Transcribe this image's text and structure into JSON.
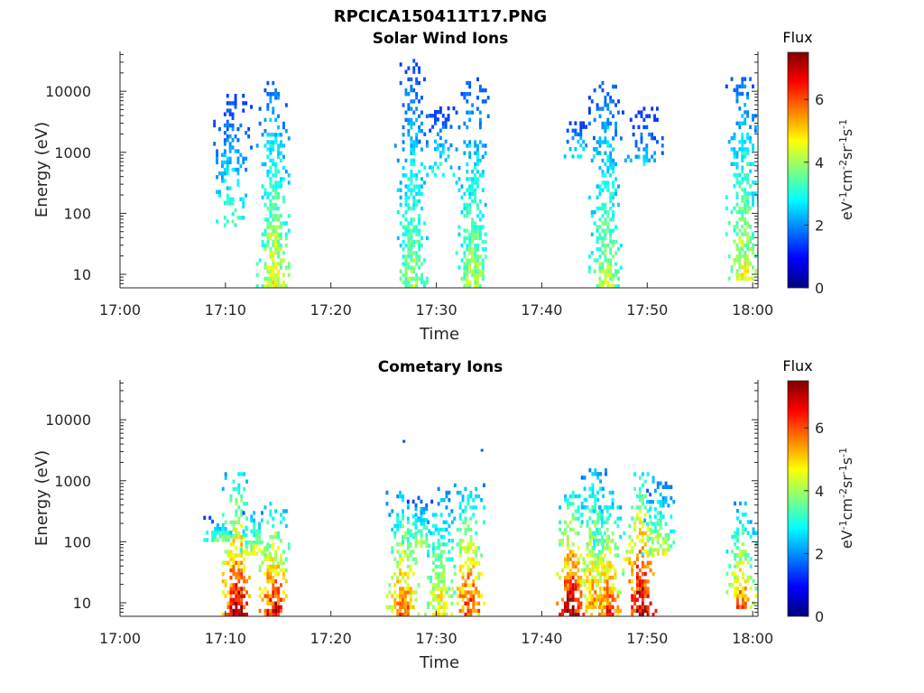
{
  "figure": {
    "title": "RPCICA150411T17.PNG"
  },
  "chart_data": [
    {
      "type": "heatmap",
      "title": "Solar Wind Ions",
      "xlabel": "Time",
      "ylabel": "Energy (eV)",
      "x_ticks": [
        "17:00",
        "17:10",
        "17:20",
        "17:30",
        "17:40",
        "17:50",
        "18:00"
      ],
      "x_range_minutes": [
        0,
        60.5
      ],
      "y_scale": "log",
      "y_ticks": [
        "10",
        "100",
        "1000",
        "10000"
      ],
      "y_range": [
        6,
        45000
      ],
      "colorbar": {
        "title": "Flux",
        "label": "eV-1cm-2sr-1s-1",
        "ticks": [
          "0",
          "2",
          "4",
          "6"
        ],
        "range": [
          0,
          7.5
        ],
        "colormap": "jet"
      },
      "bursts": [
        {
          "t": 10.5,
          "e_low": 60,
          "e_high": 9000,
          "flux_max": 3.4,
          "sparse": true
        },
        {
          "t": 14.5,
          "e_low": 6,
          "e_high": 14000,
          "flux_max": 4.6,
          "sparse": false
        },
        {
          "t": 27.6,
          "e_low": 6,
          "e_high": 30000,
          "flux_max": 4.0,
          "sparse": false
        },
        {
          "t": 30.2,
          "e_low": 400,
          "e_high": 5000,
          "flux_max": 3.2,
          "sparse": true
        },
        {
          "t": 33.4,
          "e_low": 6,
          "e_high": 15000,
          "flux_max": 4.2,
          "sparse": false
        },
        {
          "t": 46.0,
          "e_low": 6,
          "e_high": 14000,
          "flux_max": 4.2,
          "sparse": false
        },
        {
          "t": 43.5,
          "e_low": 800,
          "e_high": 3000,
          "flux_max": 3.0,
          "sparse": true
        },
        {
          "t": 49.5,
          "e_low": 600,
          "e_high": 5000,
          "flux_max": 2.6,
          "sparse": true
        },
        {
          "t": 59.0,
          "e_low": 8,
          "e_high": 15000,
          "flux_max": 4.6,
          "sparse": false
        }
      ]
    },
    {
      "type": "heatmap",
      "title": "Cometary Ions",
      "xlabel": "Time",
      "ylabel": "Energy (eV)",
      "x_ticks": [
        "17:00",
        "17:10",
        "17:20",
        "17:30",
        "17:40",
        "17:50",
        "18:00"
      ],
      "x_range_minutes": [
        0,
        60.5
      ],
      "y_scale": "log",
      "y_ticks": [
        "10",
        "100",
        "1000",
        "10000"
      ],
      "y_range": [
        6,
        45000
      ],
      "colorbar": {
        "title": "Flux",
        "label": "eV-1cm-2sr-1s-1",
        "ticks": [
          "0",
          "2",
          "4",
          "6"
        ],
        "range": [
          0,
          7.5
        ],
        "colormap": "jet"
      },
      "bursts": [
        {
          "t": 9.5,
          "e_low": 100,
          "e_high": 250,
          "flux_max": 3.8,
          "sparse": false
        },
        {
          "t": 11.0,
          "e_low": 6,
          "e_high": 1200,
          "flux_max": 7.2,
          "sparse": false
        },
        {
          "t": 12.7,
          "e_low": 60,
          "e_high": 350,
          "flux_max": 4.6,
          "sparse": false
        },
        {
          "t": 14.5,
          "e_low": 6,
          "e_high": 400,
          "flux_max": 6.8,
          "sparse": false
        },
        {
          "t": 26.8,
          "e_low": 6,
          "e_high": 600,
          "flux_max": 6.0,
          "sparse": false
        },
        {
          "t": 28.3,
          "e_low": 80,
          "e_high": 500,
          "flux_max": 4.2,
          "sparse": false
        },
        {
          "t": 30.2,
          "e_low": 6,
          "e_high": 700,
          "flux_max": 5.0,
          "sparse": false
        },
        {
          "t": 33.0,
          "e_low": 6,
          "e_high": 800,
          "flux_max": 6.4,
          "sparse": false
        },
        {
          "t": 42.7,
          "e_low": 6,
          "e_high": 600,
          "flux_max": 7.2,
          "sparse": false
        },
        {
          "t": 44.8,
          "e_low": 8,
          "e_high": 1500,
          "flux_max": 5.6,
          "sparse": false
        },
        {
          "t": 46.2,
          "e_low": 6,
          "e_high": 600,
          "flux_max": 6.2,
          "sparse": false
        },
        {
          "t": 49.3,
          "e_low": 6,
          "e_high": 1200,
          "flux_max": 7.4,
          "sparse": false
        },
        {
          "t": 51.0,
          "e_low": 60,
          "e_high": 900,
          "flux_max": 4.6,
          "sparse": false
        },
        {
          "t": 58.8,
          "e_low": 8,
          "e_high": 400,
          "flux_max": 5.8,
          "sparse": false
        }
      ],
      "outliers": [
        {
          "t": 26.8,
          "e": 4200,
          "flux": 1.4
        },
        {
          "t": 34.2,
          "e": 3000,
          "flux": 1.6
        }
      ]
    }
  ]
}
